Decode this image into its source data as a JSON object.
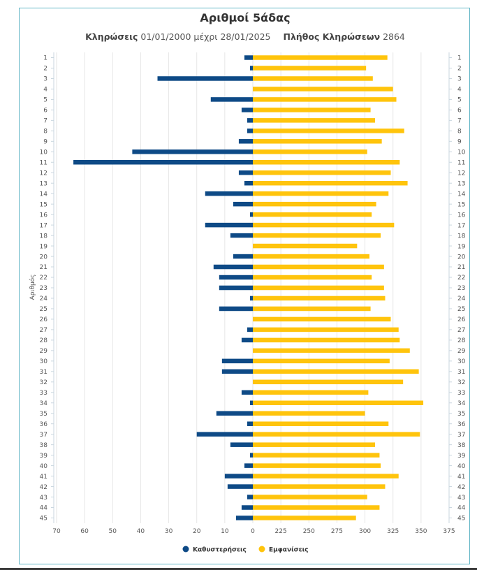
{
  "chart_data": {
    "type": "bar",
    "orientation": "horizontal-butterfly",
    "title": "Αριθμοί 5άδας",
    "subtitle": {
      "draws_label": "Κληρώσεις",
      "date_range": "01/01/2000 μέχρι 28/01/2025",
      "count_label": "Πλήθος Κληρώσεων",
      "count_value": "2864"
    },
    "ylabel": "Αριθμός",
    "categories": [
      "1",
      "2",
      "3",
      "4",
      "5",
      "6",
      "7",
      "8",
      "9",
      "10",
      "11",
      "12",
      "13",
      "14",
      "15",
      "16",
      "17",
      "18",
      "19",
      "20",
      "21",
      "22",
      "23",
      "24",
      "25",
      "26",
      "27",
      "28",
      "29",
      "30",
      "31",
      "32",
      "33",
      "34",
      "35",
      "36",
      "37",
      "38",
      "39",
      "40",
      "41",
      "42",
      "43",
      "44",
      "45"
    ],
    "left_axis": {
      "ticks": [
        70,
        60,
        50,
        40,
        30,
        20,
        10,
        0
      ],
      "range": [
        0,
        70
      ]
    },
    "right_axis": {
      "ticks": [
        225,
        250,
        275,
        300,
        325,
        350,
        375
      ],
      "range": [
        200,
        375
      ]
    },
    "series": [
      {
        "name": "Καθυστερήσεις",
        "color": "#0e4a86",
        "side": "left",
        "values": [
          3,
          1,
          34,
          0,
          15,
          4,
          2,
          2,
          5,
          43,
          64,
          5,
          3,
          17,
          7,
          1,
          17,
          8,
          0,
          7,
          14,
          12,
          12,
          1,
          12,
          0,
          2,
          4,
          0,
          11,
          11,
          0,
          4,
          1,
          13,
          2,
          20,
          8,
          1,
          3,
          10,
          9,
          2,
          4,
          6
        ]
      },
      {
        "name": "Εμφανίσεις",
        "color": "#ffc40c",
        "side": "right",
        "values": [
          320,
          301,
          307,
          325,
          328,
          305,
          309,
          335,
          315,
          302,
          331,
          323,
          338,
          321,
          310,
          306,
          326,
          314,
          293,
          304,
          317,
          306,
          317,
          318,
          305,
          323,
          330,
          331,
          340,
          322,
          348,
          334,
          303,
          352,
          300,
          321,
          349,
          309,
          313,
          314,
          330,
          318,
          302,
          313,
          292
        ]
      }
    ],
    "legend_position": "bottom-center",
    "grid": true
  }
}
